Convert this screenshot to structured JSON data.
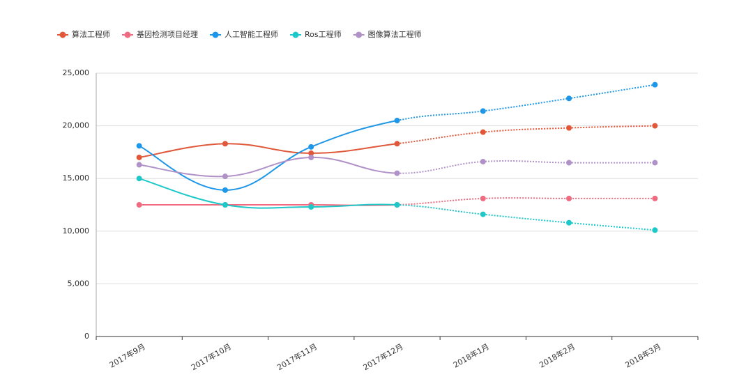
{
  "chart_data": {
    "type": "line",
    "categories": [
      "2017年9月",
      "2017年10月",
      "2017年11月",
      "2017年12月",
      "2018年1月",
      "2018年2月",
      "2018年3月"
    ],
    "series": [
      {
        "name": "算法工程师",
        "color": "#e0583a",
        "values": [
          17000,
          18300,
          17400,
          18300,
          19400,
          19800,
          20000
        ]
      },
      {
        "name": "基因检测项目经理",
        "color": "#f06b7f",
        "values": [
          12500,
          12500,
          12500,
          12500,
          13100,
          13100,
          13100
        ]
      },
      {
        "name": "人工智能工程师",
        "color": "#1f97e8",
        "values": [
          18100,
          13900,
          18000,
          20500,
          21400,
          22600,
          23900
        ]
      },
      {
        "name": "Ros工程师",
        "color": "#1fc8c8",
        "values": [
          15000,
          12500,
          12300,
          12500,
          11600,
          10800,
          10100
        ]
      },
      {
        "name": "图像算法工程师",
        "color": "#b092c8",
        "values": [
          16300,
          15200,
          17000,
          15500,
          16600,
          16500,
          16500
        ]
      }
    ],
    "dashed_from": 3,
    "ylim": [
      0,
      25000
    ],
    "yticks": [
      0,
      {
        "value": 5000,
        "label": "5,000"
      },
      {
        "value": 10000,
        "label": "10,000"
      },
      {
        "value": 15000,
        "label": "15,000"
      },
      {
        "value": 20000,
        "label": "20,000"
      },
      {
        "value": 25000,
        "label": "25,000"
      }
    ],
    "grid": true,
    "legend": "top"
  }
}
